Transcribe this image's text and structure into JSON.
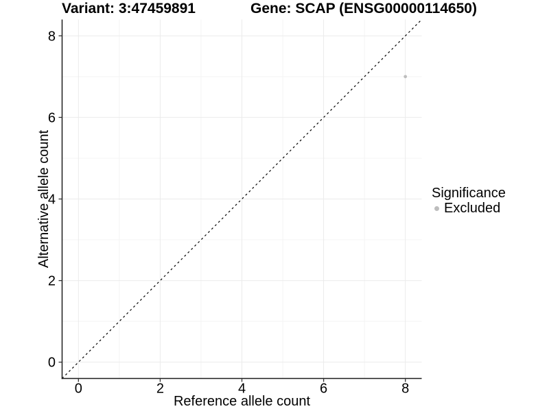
{
  "figure": {
    "titles": {
      "variant": "Variant: 3:47459891",
      "gene": "Gene: SCAP (ENSG00000114650)"
    }
  },
  "axes": {
    "x": {
      "label": "Reference allele count"
    },
    "y": {
      "label": "Alternative allele count"
    }
  },
  "legend": {
    "title": "Significance",
    "items": [
      {
        "label": "Excluded",
        "color": "#bdbdbd"
      }
    ]
  },
  "chart_data": {
    "type": "scatter",
    "title": "Variant: 3:47459891 | Gene: SCAP (ENSG00000114650)",
    "xlabel": "Reference allele count",
    "ylabel": "Alternative allele count",
    "xlim": [
      -0.4,
      8.4
    ],
    "ylim": [
      -0.4,
      8.4
    ],
    "x_ticks": [
      0,
      2,
      4,
      6,
      8
    ],
    "y_ticks": [
      0,
      2,
      4,
      6,
      8
    ],
    "minor_grid_x": [
      1,
      3,
      5,
      7
    ],
    "minor_grid_y": [
      1,
      3,
      5,
      7
    ],
    "grid": "on",
    "legend_position": "right",
    "series": [
      {
        "name": "Excluded",
        "color": "#bdbdbd",
        "points": [
          {
            "x": 8,
            "y": 7
          }
        ]
      }
    ],
    "reference_line": {
      "identity": true,
      "style": "dashed",
      "color": "#000000",
      "x": [
        -0.4,
        8.4
      ],
      "y": [
        -0.4,
        8.4
      ]
    },
    "style": {
      "major_grid_color": "#ebebeb",
      "minor_grid_color": "#f4f4f4",
      "axis_line_color": "#1a1a1a",
      "tick_color": "#333333",
      "point_color": "#bdbdbd"
    }
  }
}
